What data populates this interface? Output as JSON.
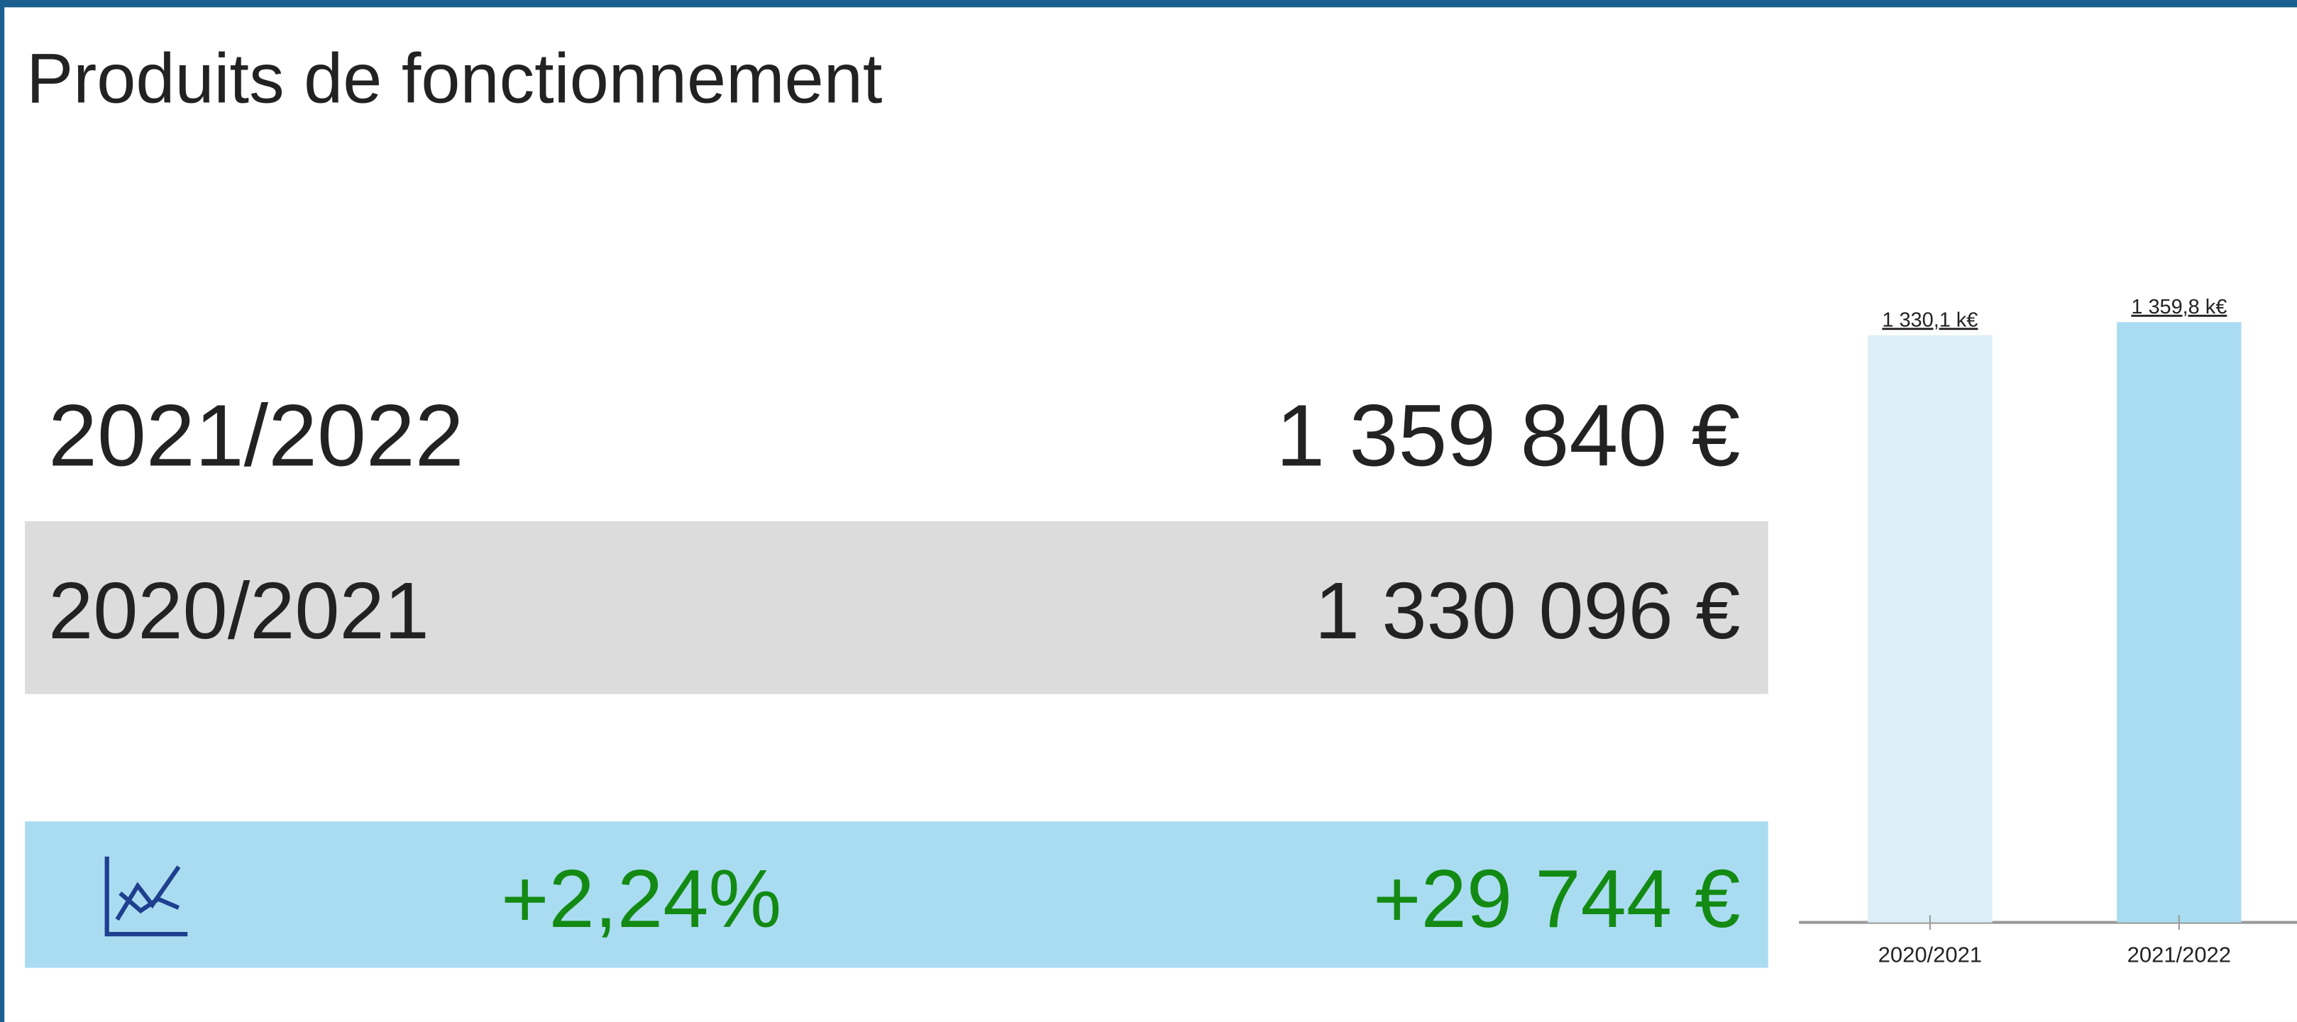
{
  "title": "Produits de fonctionnement",
  "table": {
    "current": {
      "label": "2021/2022",
      "value": "1 359 840 €"
    },
    "previous": {
      "label": "2020/2021",
      "value": "1 330 096 €"
    },
    "variation": {
      "percent": "+2,24%",
      "amount": "+29 744 €"
    }
  },
  "chart_data": {
    "type": "bar",
    "categories": [
      "2020/2021",
      "2021/2022"
    ],
    "values": [
      1330.1,
      1359.8
    ],
    "value_labels": [
      "1 330,1 k€",
      "1 359,8 k€"
    ],
    "colors": [
      "#dceef7",
      "#aadcf1"
    ]
  }
}
